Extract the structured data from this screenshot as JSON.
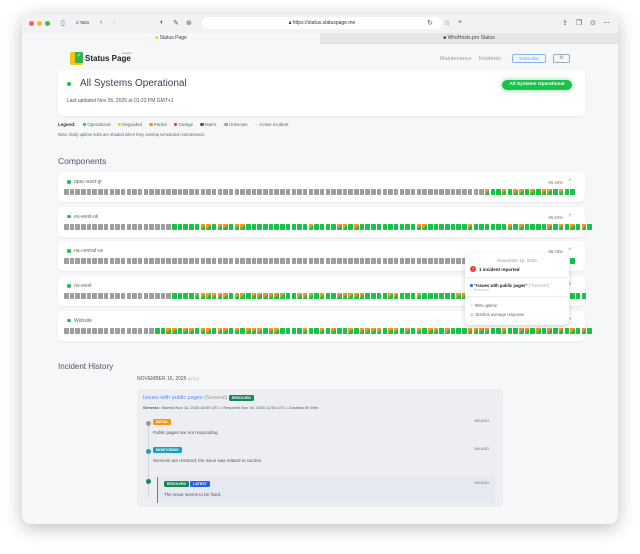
{
  "browser": {
    "tabs_count": "2 Tabs",
    "url": "https://status.statuspage.me",
    "tabs": [
      {
        "label": "Status Page"
      },
      {
        "label": "WhoHosts.pro Status"
      }
    ]
  },
  "header": {
    "logo": "Status Page",
    "logo_sup": "hosted",
    "nav": [
      "Maintenance",
      "Incidents"
    ],
    "subscribe": "Subscribe"
  },
  "status": {
    "title": "All Systems Operational",
    "badge": "All Systems Operational",
    "last_updated": "Last updated Nov 26, 2025 at 01:23 PM GMT+1"
  },
  "legend": {
    "label": "Legend:",
    "items": [
      {
        "label": "Operational",
        "color": "#19c24a"
      },
      {
        "label": "Degraded",
        "color": "#f5c518"
      },
      {
        "label": "Partial",
        "color": "#f7931e"
      },
      {
        "label": "Outage",
        "color": "#e53935"
      },
      {
        "label": "Maint.",
        "color": "#455a64"
      },
      {
        "label": "Unknown",
        "color": "#9e9e9e"
      },
      {
        "label": "Active Incident",
        "color": "#fbe9d3"
      }
    ],
    "note": "Note: Daily uptime ticks are shaded when they overlap scheduled maintenance."
  },
  "components_title": "Components",
  "components": [
    {
      "name": "apac-east-jp",
      "uptime": "99.46%",
      "days": "uuuuuuuuuuuuuuuuuuuuuuuuuuuuuuuuuuuuuuuuuuuuuuuuuuuuuuuuuuuuuuuuuuuuuuuuuuhoohohhohohhohoo"
    },
    {
      "name": "eu-west-uk",
      "uptime": "99.63%",
      "days": "uuuuuuuuuuuuuuuuuuuooooohhohhohhooooooooooohoooohhohoooooooooohhooooooohoooooohohoooohohohoho"
    },
    {
      "name": "na-central-us",
      "uptime": "99.78%",
      "days": "uuuuuuuuuuuuuuuuuuuuuuuuuuuuuuuuuuuuuuuuuuuuuuuuuuuuuuuuuuuuuuuuuuuuuuuuuuuuuuuuuuuuuuuuuo"
    },
    {
      "name": "no-west",
      "uptime": "",
      "days": "uuuuuuuuuuuuuuuuuuuoooohhhhhhohhohhhhhhoohhhohoohhhhhoooohhooohoooooohhoooohoooooooooooooooo"
    },
    {
      "name": "Website",
      "uptime": "",
      "days": "uuuuuuuuuuuuuuuuoohhohhohhohhohohhhohhoooohoohohoohohhhhohhohohohhohooohhhhoohoohhohohohohoho"
    }
  ],
  "tooltip": {
    "date": "November 16, 2025",
    "headline": "1 incident reported",
    "incident": "\"Issues with public pages\"",
    "incident_group": "(\"General\")",
    "incident_status": "Resolved",
    "uptime": "99% uptime",
    "response": "1534ms average response"
  },
  "history": {
    "title": "Incident History",
    "date": "NOVEMBER 16, 2025",
    "tz": "(UTC)",
    "incident": {
      "title": "Issues with public pages",
      "group": "(General)",
      "badge": "RESOLVED",
      "meta_bold": "General",
      "meta": " • Started Nov 16, 2025 04:50 UTC • Resolved Nov 16, 2025 11:50 UTC • Duration 6h 59m",
      "updates": [
        {
          "tag": "INITIAL",
          "tag_color": "#f7931e",
          "time": "1W AGO",
          "text": "Public pages are not responding."
        },
        {
          "tag": "MONITORING",
          "tag_color": "#17a2b8",
          "time": "1W AGO",
          "text": "Services are restored; the issue was related to caches."
        },
        {
          "tag": "RESOLVED",
          "tag_color": "#198754",
          "tag2": "LATEST",
          "time": "1W AGO",
          "text": "The issue seems to be fixed."
        }
      ]
    }
  },
  "colors": {
    "operational": "#19c24a",
    "partial": "#f7931e",
    "unknown": "#9e9e9e",
    "accent": "#3b82f6"
  }
}
